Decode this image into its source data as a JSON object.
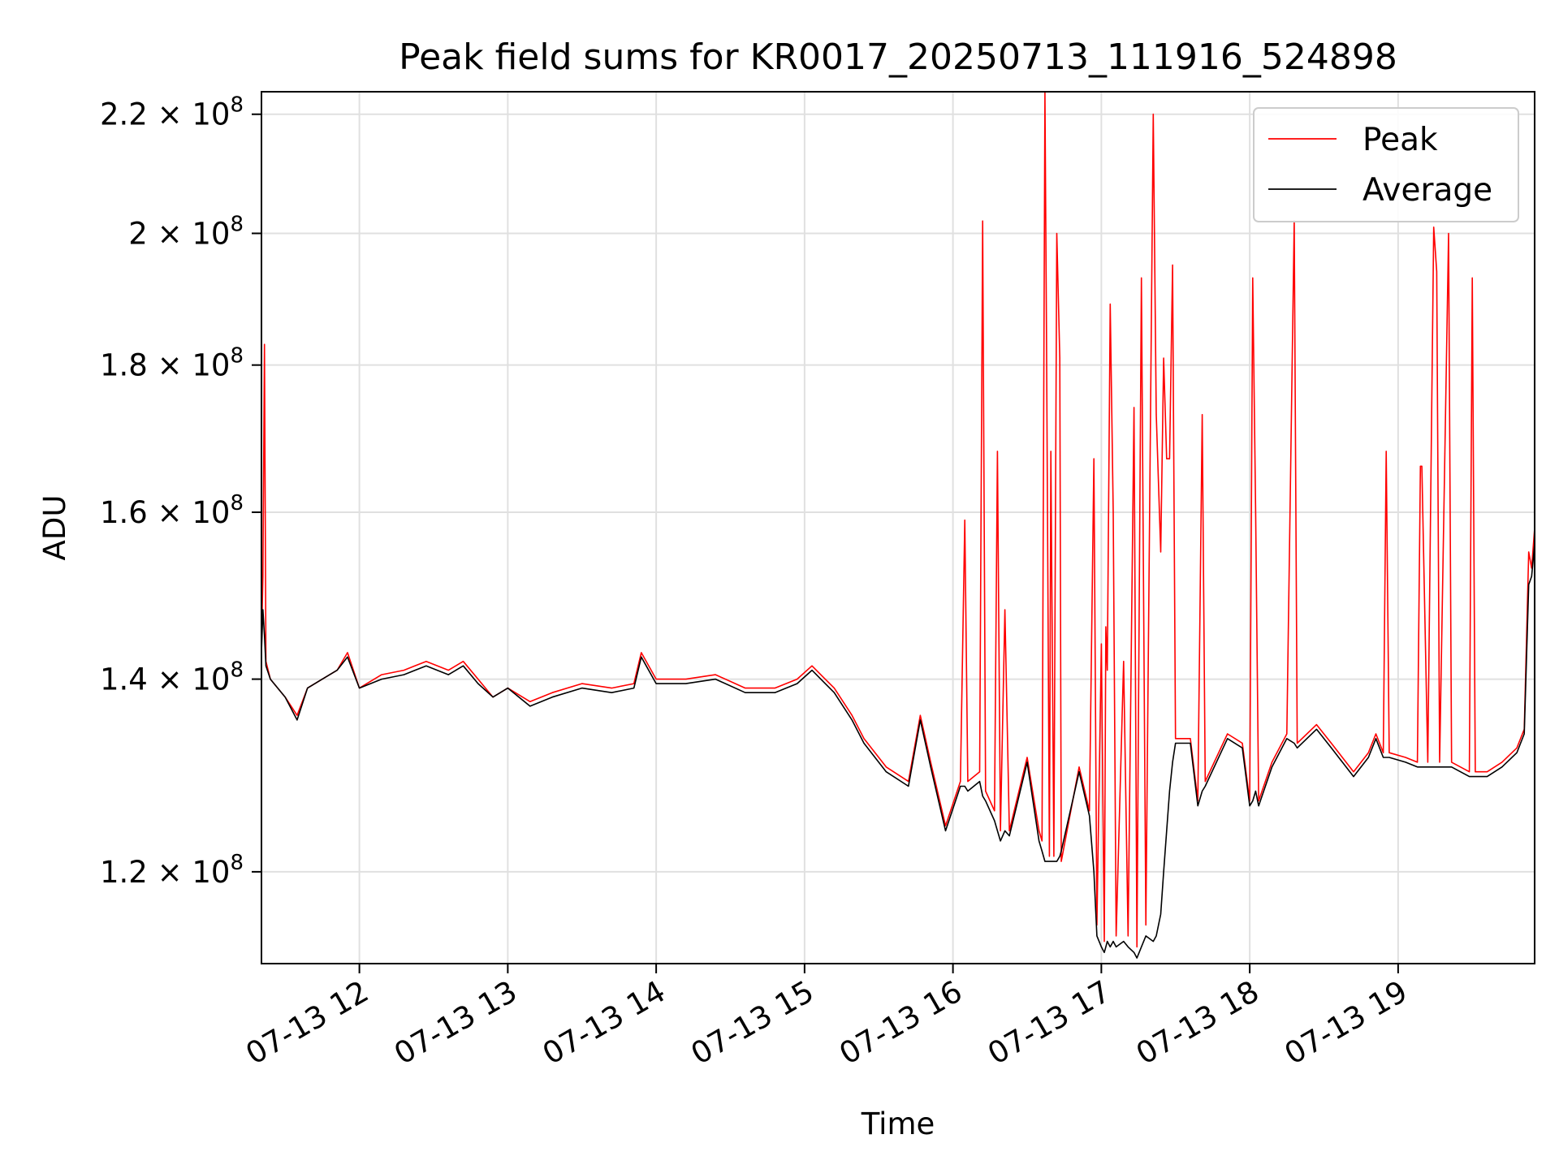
{
  "chart_data": {
    "type": "line",
    "title": "Peak field sums for KR0017_20250713_111916_524898",
    "xlabel": "Time",
    "ylabel": "ADU",
    "scale": "log-y",
    "grid": true,
    "legend_position": "top-right",
    "x_ticks": [
      "07-13 12",
      "07-13 13",
      "07-13 14",
      "07-13 15",
      "07-13 16",
      "07-13 17",
      "07-13 18",
      "07-13 19"
    ],
    "y_ticks": [
      {
        "value": 120000000,
        "mantissa": "1.2",
        "exponent": "8"
      },
      {
        "value": 140000000,
        "mantissa": "1.4",
        "exponent": "8"
      },
      {
        "value": 160000000,
        "mantissa": "1.6",
        "exponent": "8"
      },
      {
        "value": 180000000,
        "mantissa": "1.8",
        "exponent": "8"
      },
      {
        "value": 200000000,
        "mantissa": "2",
        "exponent": "8"
      },
      {
        "value": 220000000,
        "mantissa": "2.2",
        "exponent": "8"
      }
    ],
    "times_format": "hours after 2025-07-13 00:00",
    "xlim": [
      11.34,
      19.92
    ],
    "ylim": [
      111500000,
      224000000
    ],
    "series": [
      {
        "name": "Peak",
        "color": "#ff0000",
        "points": [
          [
            11.34,
            144000000
          ],
          [
            11.35,
            152000000
          ],
          [
            11.36,
            183000000
          ],
          [
            11.37,
            142000000
          ],
          [
            11.4,
            140000000
          ],
          [
            11.5,
            138000000
          ],
          [
            11.58,
            136000000
          ],
          [
            11.65,
            139000000
          ],
          [
            11.75,
            140000000
          ],
          [
            11.85,
            141000000
          ],
          [
            11.92,
            143000000
          ],
          [
            12.0,
            139000000
          ],
          [
            12.15,
            140500000
          ],
          [
            12.3,
            141000000
          ],
          [
            12.45,
            142000000
          ],
          [
            12.6,
            141000000
          ],
          [
            12.7,
            142000000
          ],
          [
            12.8,
            140000000
          ],
          [
            12.9,
            138000000
          ],
          [
            13.0,
            139000000
          ],
          [
            13.15,
            137500000
          ],
          [
            13.3,
            138500000
          ],
          [
            13.5,
            139500000
          ],
          [
            13.7,
            139000000
          ],
          [
            13.85,
            139500000
          ],
          [
            13.9,
            143000000
          ],
          [
            14.0,
            140000000
          ],
          [
            14.2,
            140000000
          ],
          [
            14.4,
            140500000
          ],
          [
            14.6,
            139000000
          ],
          [
            14.8,
            139000000
          ],
          [
            14.95,
            140000000
          ],
          [
            15.05,
            141500000
          ],
          [
            15.2,
            139000000
          ],
          [
            15.32,
            136000000
          ],
          [
            15.4,
            133500000
          ],
          [
            15.55,
            130500000
          ],
          [
            15.7,
            129000000
          ],
          [
            15.78,
            136000000
          ],
          [
            15.85,
            131000000
          ],
          [
            15.95,
            124500000
          ],
          [
            16.05,
            129000000
          ],
          [
            16.08,
            159000000
          ],
          [
            16.1,
            129000000
          ],
          [
            16.18,
            130000000
          ],
          [
            16.2,
            202000000
          ],
          [
            16.22,
            128000000
          ],
          [
            16.28,
            126000000
          ],
          [
            16.3,
            168000000
          ],
          [
            16.32,
            124000000
          ],
          [
            16.35,
            148000000
          ],
          [
            16.38,
            124000000
          ],
          [
            16.5,
            131500000
          ],
          [
            16.58,
            124000000
          ],
          [
            16.6,
            123000000
          ],
          [
            16.62,
            224000000
          ],
          [
            16.63,
            185000000
          ],
          [
            16.65,
            121500000
          ],
          [
            16.66,
            168000000
          ],
          [
            16.68,
            121500000
          ],
          [
            16.7,
            200000000
          ],
          [
            16.72,
            181000000
          ],
          [
            16.73,
            121000000
          ],
          [
            16.85,
            130500000
          ],
          [
            16.92,
            126000000
          ],
          [
            16.95,
            167000000
          ],
          [
            16.97,
            115000000
          ],
          [
            17.0,
            144000000
          ],
          [
            17.02,
            113500000
          ],
          [
            17.03,
            146000000
          ],
          [
            17.04,
            141000000
          ],
          [
            17.06,
            189000000
          ],
          [
            17.08,
            160000000
          ],
          [
            17.1,
            114000000
          ],
          [
            17.15,
            142000000
          ],
          [
            17.18,
            114000000
          ],
          [
            17.22,
            174000000
          ],
          [
            17.24,
            113000000
          ],
          [
            17.27,
            193000000
          ],
          [
            17.3,
            115000000
          ],
          [
            17.35,
            220000000
          ],
          [
            17.37,
            173000000
          ],
          [
            17.4,
            155000000
          ],
          [
            17.42,
            181000000
          ],
          [
            17.44,
            167000000
          ],
          [
            17.46,
            167000000
          ],
          [
            17.48,
            195000000
          ],
          [
            17.5,
            133500000
          ],
          [
            17.6,
            133500000
          ],
          [
            17.65,
            127000000
          ],
          [
            17.68,
            173000000
          ],
          [
            17.7,
            129000000
          ],
          [
            17.85,
            134000000
          ],
          [
            17.95,
            133000000
          ],
          [
            18.0,
            127000000
          ],
          [
            18.02,
            193000000
          ],
          [
            18.04,
            160000000
          ],
          [
            18.06,
            127000000
          ],
          [
            18.15,
            131000000
          ],
          [
            18.25,
            134000000
          ],
          [
            18.3,
            202000000
          ],
          [
            18.32,
            133000000
          ],
          [
            18.45,
            135000000
          ],
          [
            18.55,
            133000000
          ],
          [
            18.7,
            130000000
          ],
          [
            18.8,
            132000000
          ],
          [
            18.85,
            134000000
          ],
          [
            18.9,
            132000000
          ],
          [
            18.92,
            168000000
          ],
          [
            18.94,
            132000000
          ],
          [
            19.05,
            131500000
          ],
          [
            19.13,
            131000000
          ],
          [
            19.15,
            166000000
          ],
          [
            19.16,
            166000000
          ],
          [
            19.2,
            131000000
          ],
          [
            19.24,
            201000000
          ],
          [
            19.26,
            194000000
          ],
          [
            19.28,
            131000000
          ],
          [
            19.34,
            200000000
          ],
          [
            19.36,
            131000000
          ],
          [
            19.48,
            130000000
          ],
          [
            19.5,
            193000000
          ],
          [
            19.52,
            130000000
          ],
          [
            19.6,
            130000000
          ],
          [
            19.7,
            131000000
          ],
          [
            19.8,
            132500000
          ],
          [
            19.85,
            134500000
          ],
          [
            19.88,
            155000000
          ],
          [
            19.9,
            153000000
          ],
          [
            19.92,
            158000000
          ]
        ]
      },
      {
        "name": "Average",
        "color": "#000000",
        "points": [
          [
            11.34,
            143000000
          ],
          [
            11.35,
            148000000
          ],
          [
            11.36,
            145000000
          ],
          [
            11.37,
            141500000
          ],
          [
            11.4,
            140000000
          ],
          [
            11.5,
            138000000
          ],
          [
            11.58,
            135500000
          ],
          [
            11.65,
            139000000
          ],
          [
            11.75,
            140000000
          ],
          [
            11.85,
            141000000
          ],
          [
            11.92,
            142500000
          ],
          [
            12.0,
            139000000
          ],
          [
            12.15,
            140000000
          ],
          [
            12.3,
            140500000
          ],
          [
            12.45,
            141500000
          ],
          [
            12.6,
            140500000
          ],
          [
            12.7,
            141500000
          ],
          [
            12.8,
            139500000
          ],
          [
            12.9,
            138000000
          ],
          [
            13.0,
            139000000
          ],
          [
            13.15,
            137000000
          ],
          [
            13.3,
            138000000
          ],
          [
            13.5,
            139000000
          ],
          [
            13.7,
            138500000
          ],
          [
            13.85,
            139000000
          ],
          [
            13.9,
            142500000
          ],
          [
            14.0,
            139500000
          ],
          [
            14.2,
            139500000
          ],
          [
            14.4,
            140000000
          ],
          [
            14.6,
            138500000
          ],
          [
            14.8,
            138500000
          ],
          [
            14.95,
            139500000
          ],
          [
            15.05,
            141000000
          ],
          [
            15.2,
            138500000
          ],
          [
            15.32,
            135500000
          ],
          [
            15.4,
            133000000
          ],
          [
            15.55,
            130000000
          ],
          [
            15.7,
            128500000
          ],
          [
            15.78,
            135500000
          ],
          [
            15.85,
            130500000
          ],
          [
            15.95,
            124000000
          ],
          [
            16.05,
            128500000
          ],
          [
            16.08,
            128500000
          ],
          [
            16.1,
            128000000
          ],
          [
            16.18,
            129000000
          ],
          [
            16.2,
            127500000
          ],
          [
            16.22,
            127000000
          ],
          [
            16.28,
            125000000
          ],
          [
            16.3,
            124000000
          ],
          [
            16.32,
            123000000
          ],
          [
            16.35,
            124000000
          ],
          [
            16.38,
            123500000
          ],
          [
            16.5,
            131000000
          ],
          [
            16.58,
            123000000
          ],
          [
            16.6,
            122000000
          ],
          [
            16.62,
            121000000
          ],
          [
            16.63,
            121000000
          ],
          [
            16.65,
            121000000
          ],
          [
            16.66,
            121000000
          ],
          [
            16.68,
            121000000
          ],
          [
            16.7,
            121000000
          ],
          [
            16.72,
            121500000
          ],
          [
            16.73,
            122000000
          ],
          [
            16.85,
            130000000
          ],
          [
            16.92,
            125500000
          ],
          [
            16.95,
            120000000
          ],
          [
            16.97,
            114000000
          ],
          [
            17.0,
            113000000
          ],
          [
            17.02,
            112500000
          ],
          [
            17.03,
            113000000
          ],
          [
            17.04,
            113500000
          ],
          [
            17.06,
            113000000
          ],
          [
            17.08,
            113500000
          ],
          [
            17.1,
            113000000
          ],
          [
            17.15,
            113500000
          ],
          [
            17.18,
            113000000
          ],
          [
            17.22,
            112500000
          ],
          [
            17.24,
            112000000
          ],
          [
            17.27,
            113000000
          ],
          [
            17.3,
            114000000
          ],
          [
            17.35,
            113500000
          ],
          [
            17.37,
            114000000
          ],
          [
            17.4,
            116000000
          ],
          [
            17.42,
            120000000
          ],
          [
            17.44,
            124000000
          ],
          [
            17.46,
            128000000
          ],
          [
            17.48,
            131000000
          ],
          [
            17.5,
            133000000
          ],
          [
            17.6,
            133000000
          ],
          [
            17.65,
            126500000
          ],
          [
            17.68,
            128000000
          ],
          [
            17.7,
            128500000
          ],
          [
            17.85,
            133500000
          ],
          [
            17.95,
            132500000
          ],
          [
            18.0,
            126500000
          ],
          [
            18.02,
            127000000
          ],
          [
            18.04,
            128000000
          ],
          [
            18.06,
            126500000
          ],
          [
            18.15,
            130500000
          ],
          [
            18.25,
            133500000
          ],
          [
            18.3,
            133000000
          ],
          [
            18.32,
            132500000
          ],
          [
            18.45,
            134500000
          ],
          [
            18.55,
            132500000
          ],
          [
            18.7,
            129500000
          ],
          [
            18.8,
            131500000
          ],
          [
            18.85,
            133500000
          ],
          [
            18.9,
            131500000
          ],
          [
            18.92,
            131500000
          ],
          [
            18.94,
            131500000
          ],
          [
            19.05,
            131000000
          ],
          [
            19.13,
            130500000
          ],
          [
            19.15,
            130500000
          ],
          [
            19.16,
            130500000
          ],
          [
            19.2,
            130500000
          ],
          [
            19.24,
            130500000
          ],
          [
            19.26,
            130500000
          ],
          [
            19.28,
            130500000
          ],
          [
            19.34,
            130500000
          ],
          [
            19.36,
            130500000
          ],
          [
            19.48,
            129500000
          ],
          [
            19.5,
            129500000
          ],
          [
            19.52,
            129500000
          ],
          [
            19.6,
            129500000
          ],
          [
            19.7,
            130500000
          ],
          [
            19.8,
            132000000
          ],
          [
            19.85,
            134000000
          ],
          [
            19.88,
            151000000
          ],
          [
            19.9,
            152000000
          ],
          [
            19.92,
            156000000
          ]
        ]
      }
    ]
  }
}
